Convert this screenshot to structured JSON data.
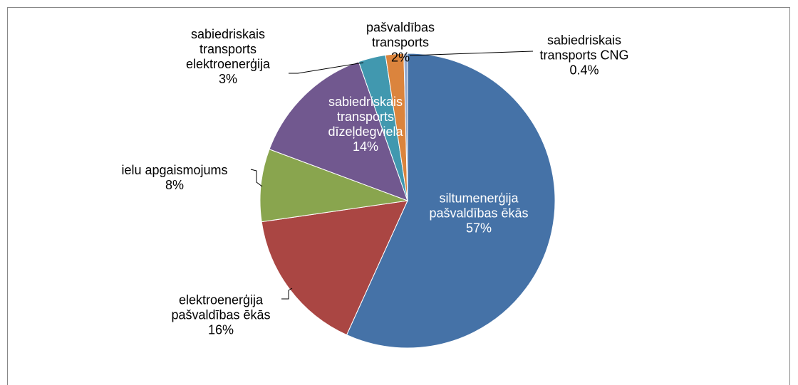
{
  "chart_data": {
    "type": "pie",
    "categories": [
      "siltumenerģija pašvaldības ēkās",
      "elektroenerģija pašvaldības ēkās",
      "ielu apgaismojums",
      "sabiedriskais transports dīzeļdegviela",
      "sabiedriskais transports elektroenerģija",
      "pašvaldības transports",
      "sabiedriskais transports CNG"
    ],
    "values": [
      57,
      16,
      8,
      14,
      3,
      2,
      0.4
    ],
    "value_labels": [
      "57%",
      "16%",
      "8%",
      "14%",
      "3%",
      "2%",
      "0.4%"
    ],
    "colors": [
      "#4572a7",
      "#aa4643",
      "#89a54e",
      "#71588f",
      "#4198af",
      "#db843d",
      "#93a9cf"
    ]
  }
}
